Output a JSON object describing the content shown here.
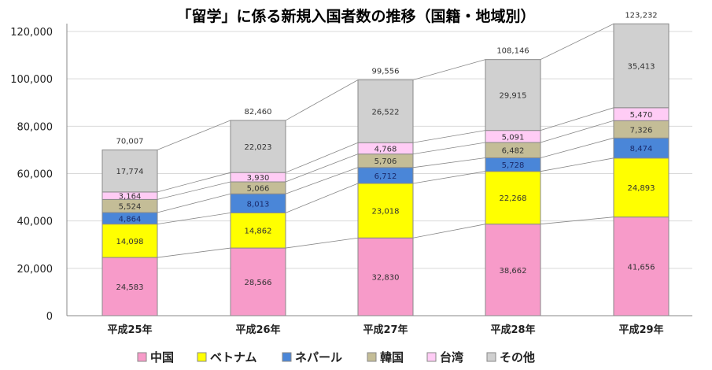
{
  "chart_data": {
    "type": "bar",
    "stacked": true,
    "title": "「留学」に係る新規入国者数の推移（国籍・地域別）",
    "categories": [
      "平成25年",
      "平成26年",
      "平成27年",
      "平成28年",
      "平成29年"
    ],
    "ylim": [
      0,
      120000
    ],
    "yticks": [
      "0",
      "20,000",
      "40,000",
      "60,000",
      "80,000",
      "100,000",
      "120,000"
    ],
    "grid": true,
    "legend_position": "bottom",
    "series": [
      {
        "name": "中国",
        "color": "#F79BC9",
        "values": [
          24583,
          28566,
          32830,
          38662,
          41656
        ],
        "labels": [
          "24,583",
          "28,566",
          "32,830",
          "38,662",
          "41,656"
        ]
      },
      {
        "name": "ベトナム",
        "color": "#FFFF00",
        "values": [
          14098,
          14862,
          23018,
          22268,
          24893
        ],
        "labels": [
          "14,098",
          "14,862",
          "23,018",
          "22,268",
          "24,893"
        ]
      },
      {
        "name": "ネパール",
        "color": "#4A86D8",
        "values": [
          4864,
          8013,
          6712,
          5728,
          8474
        ],
        "labels": [
          "4,864",
          "8,013",
          "6,712",
          "5,728",
          "8,474"
        ]
      },
      {
        "name": "韓国",
        "color": "#C4BD97",
        "values": [
          5524,
          5066,
          5706,
          6482,
          7326
        ],
        "labels": [
          "5,524",
          "5,066",
          "5,706",
          "6,482",
          "7,326"
        ]
      },
      {
        "name": "台湾",
        "color": "#FFCCF5",
        "values": [
          3164,
          3930,
          4768,
          5091,
          5470
        ],
        "labels": [
          "3,164",
          "3,930",
          "4,768",
          "5,091",
          "5,470"
        ]
      },
      {
        "name": "その他",
        "color": "#D0D0D0",
        "values": [
          17774,
          22023,
          26522,
          29915,
          35413
        ],
        "labels": [
          "17,774",
          "22,023",
          "26,522",
          "29,915",
          "35,413"
        ]
      }
    ],
    "totals": [
      "70,007",
      "82,460",
      "99,556",
      "108,146",
      "123,232"
    ]
  }
}
